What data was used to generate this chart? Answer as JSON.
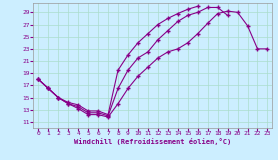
{
  "xlabel": "Windchill (Refroidissement éolien,°C)",
  "xlim": [
    -0.5,
    23.5
  ],
  "ylim": [
    10,
    30.5
  ],
  "xticks": [
    0,
    1,
    2,
    3,
    4,
    5,
    6,
    7,
    8,
    9,
    10,
    11,
    12,
    13,
    14,
    15,
    16,
    17,
    18,
    19,
    20,
    21,
    22,
    23
  ],
  "yticks": [
    11,
    13,
    15,
    17,
    19,
    21,
    23,
    25,
    27,
    29
  ],
  "bg_color": "#cceeff",
  "line_color": "#880088",
  "grid_color": "#aaddcc",
  "line1_x": [
    0,
    1,
    2,
    3,
    4,
    5,
    6,
    7,
    8,
    9,
    10,
    11,
    12,
    13,
    14,
    15,
    16,
    17,
    18,
    19,
    20,
    21,
    22,
    23
  ],
  "line1_y": [
    18.0,
    16.5,
    15.0,
    14.0,
    13.2,
    12.2,
    12.2,
    11.8,
    14.0,
    16.5,
    18.5,
    20.0,
    21.5,
    22.5,
    23.0,
    24.0,
    25.5,
    27.2,
    28.8,
    29.2,
    29.0,
    26.8,
    23.0,
    23.0
  ],
  "line2_x": [
    0,
    1,
    2,
    3,
    4,
    5,
    6,
    7,
    8,
    9,
    10,
    11,
    12,
    13,
    14,
    15,
    16,
    17,
    18,
    19
  ],
  "line2_y": [
    18.0,
    16.5,
    15.0,
    14.0,
    13.5,
    12.5,
    12.5,
    12.0,
    16.5,
    19.5,
    21.5,
    22.5,
    24.5,
    26.0,
    27.5,
    28.5,
    29.0,
    29.8,
    29.8,
    28.5
  ],
  "line3_x": [
    0,
    1,
    2,
    3,
    4,
    5,
    6,
    7,
    8,
    9,
    10,
    11,
    12,
    13,
    14,
    15,
    16
  ],
  "line3_y": [
    18.0,
    16.5,
    15.0,
    14.2,
    13.8,
    12.8,
    12.8,
    12.2,
    19.5,
    22.0,
    24.0,
    25.5,
    27.0,
    28.0,
    28.8,
    29.5,
    30.0
  ]
}
